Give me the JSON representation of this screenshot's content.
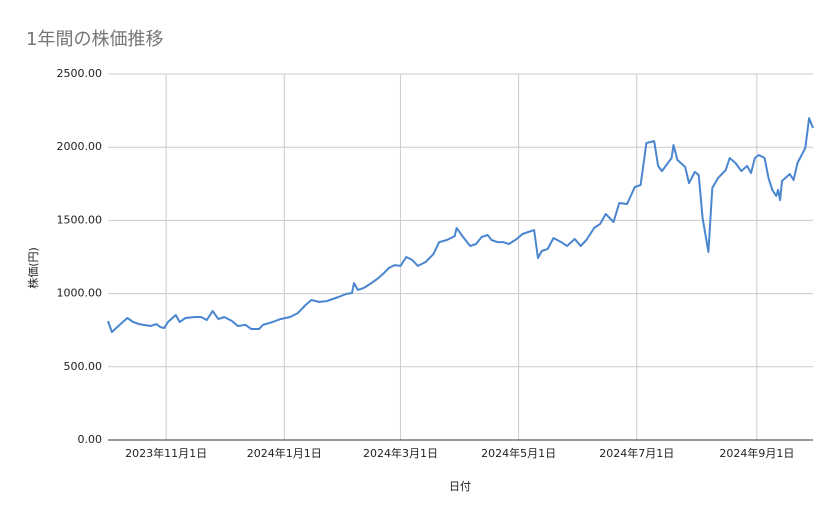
{
  "chart_data": {
    "type": "line",
    "title": "1年間の株価推移",
    "xlabel": "日付",
    "ylabel": "株価(円)",
    "color": "#4a86d0",
    "grid": true,
    "x": [
      "2023-10-02",
      "2023-10-04",
      "2023-10-08",
      "2023-10-12",
      "2023-10-15",
      "2023-10-18",
      "2023-10-24",
      "2023-10-27",
      "2023-10-29",
      "2023-10-31",
      "2023-11-02",
      "2023-11-06",
      "2023-11-08",
      "2023-11-11",
      "2023-11-16",
      "2023-11-19",
      "2023-11-22",
      "2023-11-25",
      "2023-11-28",
      "2023-12-01",
      "2023-12-05",
      "2023-12-08",
      "2023-12-12",
      "2023-12-15",
      "2023-12-19",
      "2023-12-21",
      "2023-12-26",
      "2023-12-30",
      "2024-01-04",
      "2024-01-08",
      "2024-01-12",
      "2024-01-15",
      "2024-01-19",
      "2024-01-23",
      "2024-01-26",
      "2024-01-29",
      "2024-02-02",
      "2024-02-05",
      "2024-02-06",
      "2024-02-08",
      "2024-02-11",
      "2024-02-15",
      "2024-02-18",
      "2024-02-21",
      "2024-02-24",
      "2024-02-27",
      "2024-03-01",
      "2024-03-04",
      "2024-03-07",
      "2024-03-10",
      "2024-03-14",
      "2024-03-18",
      "2024-03-21",
      "2024-03-25",
      "2024-03-29",
      "2024-03-30",
      "2024-04-02",
      "2024-04-06",
      "2024-04-09",
      "2024-04-12",
      "2024-04-15",
      "2024-04-17",
      "2024-04-20",
      "2024-04-23",
      "2024-04-26",
      "2024-04-30",
      "2024-05-03",
      "2024-05-06",
      "2024-05-09",
      "2024-05-11",
      "2024-05-13",
      "2024-05-16",
      "2024-05-19",
      "2024-05-23",
      "2024-05-26",
      "2024-05-30",
      "2024-06-02",
      "2024-06-05",
      "2024-06-09",
      "2024-06-12",
      "2024-06-15",
      "2024-06-19",
      "2024-06-22",
      "2024-06-26",
      "2024-06-30",
      "2024-07-03",
      "2024-07-06",
      "2024-07-10",
      "2024-07-12",
      "2024-07-14",
      "2024-07-19",
      "2024-07-20",
      "2024-07-22",
      "2024-07-26",
      "2024-07-28",
      "2024-07-31",
      "2024-08-02",
      "2024-08-04",
      "2024-08-07",
      "2024-08-09",
      "2024-08-12",
      "2024-08-16",
      "2024-08-18",
      "2024-08-21",
      "2024-08-24",
      "2024-08-27",
      "2024-08-29",
      "2024-08-31",
      "2024-09-02",
      "2024-09-05",
      "2024-09-07",
      "2024-09-09",
      "2024-09-11",
      "2024-09-12",
      "2024-09-13",
      "2024-09-14",
      "2024-09-18",
      "2024-09-20",
      "2024-09-22",
      "2024-09-26",
      "2024-09-28",
      "2024-09-30"
    ],
    "values": [
      813,
      738,
      786,
      833,
      806,
      792,
      779,
      792,
      772,
      765,
      806,
      854,
      806,
      833,
      840,
      840,
      820,
      881,
      826,
      840,
      813,
      779,
      786,
      758,
      758,
      786,
      806,
      826,
      840,
      867,
      922,
      956,
      943,
      949,
      963,
      977,
      997,
      1004,
      1072,
      1025,
      1038,
      1072,
      1100,
      1134,
      1175,
      1195,
      1189,
      1250,
      1230,
      1189,
      1216,
      1270,
      1352,
      1366,
      1393,
      1448,
      1393,
      1325,
      1339,
      1387,
      1400,
      1366,
      1352,
      1352,
      1339,
      1373,
      1407,
      1421,
      1434,
      1243,
      1291,
      1305,
      1380,
      1352,
      1325,
      1373,
      1325,
      1366,
      1448,
      1475,
      1544,
      1489,
      1619,
      1612,
      1728,
      1742,
      2029,
      2042,
      1872,
      1837,
      1926,
      2015,
      1913,
      1865,
      1755,
      1831,
      1810,
      1516,
      1284,
      1721,
      1790,
      1844,
      1926,
      1892,
      1837,
      1872,
      1824,
      1926,
      1947,
      1926,
      1790,
      1708,
      1667,
      1708,
      1639,
      1769,
      1817,
      1776,
      1892,
      1995,
      2199,
      2131
    ],
    "xlim": [
      "2023-10-02",
      "2024-09-30"
    ],
    "xticks": [
      {
        "value": "2023-11-01",
        "label": "2023年11月1日"
      },
      {
        "value": "2024-01-01",
        "label": "2024年1月1日"
      },
      {
        "value": "2024-03-01",
        "label": "2024年3月1日"
      },
      {
        "value": "2024-05-01",
        "label": "2024年5月1日"
      },
      {
        "value": "2024-07-01",
        "label": "2024年7月1日"
      },
      {
        "value": "2024-09-01",
        "label": "2024年9月1日"
      }
    ],
    "ylim": [
      0,
      2500
    ],
    "yticks": [
      {
        "value": 0,
        "label": "0.00"
      },
      {
        "value": 500,
        "label": "500.00"
      },
      {
        "value": 1000,
        "label": "1000.00"
      },
      {
        "value": 1500,
        "label": "1500.00"
      },
      {
        "value": 2000,
        "label": "2000.00"
      },
      {
        "value": 2500,
        "label": "2500.00"
      }
    ]
  }
}
